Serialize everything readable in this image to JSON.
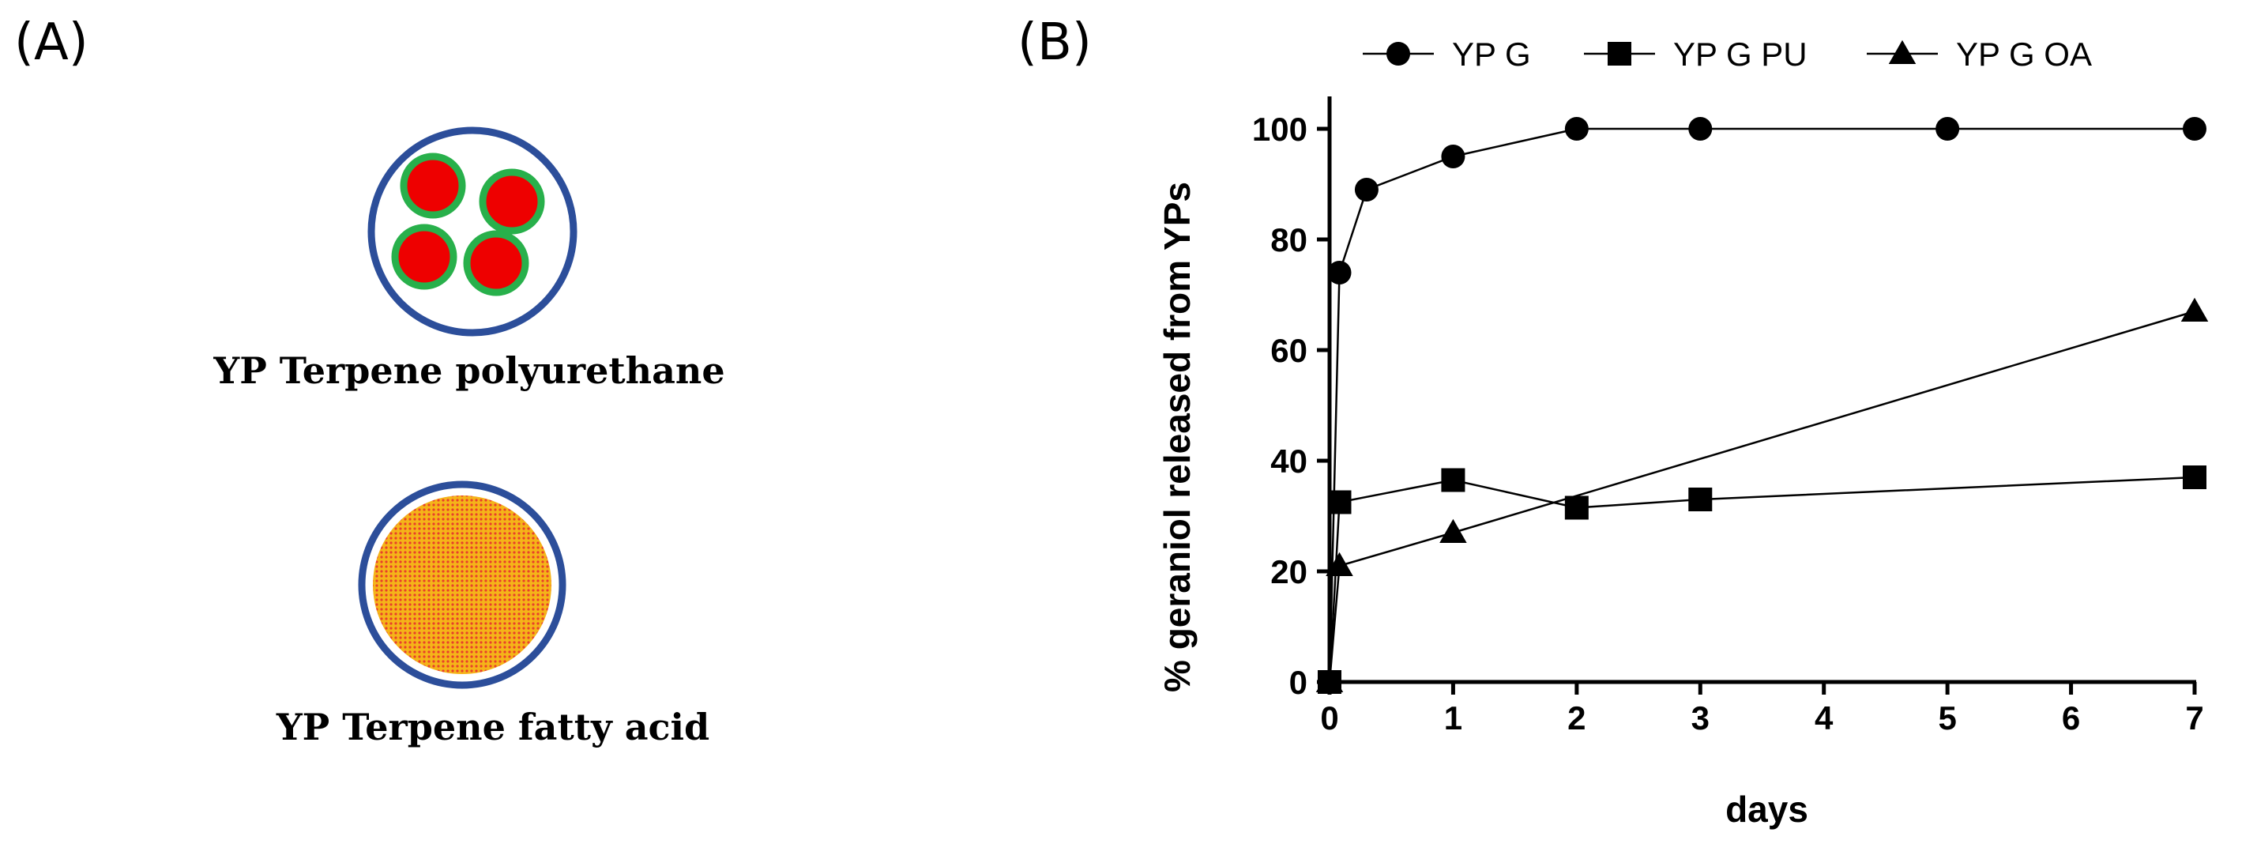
{
  "panels": {
    "a_label": "(A)",
    "b_label": "(B)"
  },
  "diagram": {
    "items": [
      {
        "caption": "YP Terpene polyurethane"
      },
      {
        "caption": "YP Terpene fatty acid"
      }
    ],
    "colors": {
      "shell": "#2c4e9a",
      "core_fill": "#ee0000",
      "core_ring": "#28b04b",
      "fatty_fill": "#f5b419",
      "fatty_dots": "#e8402a"
    }
  },
  "chart_data": {
    "type": "line",
    "title": "",
    "xlabel": "days",
    "ylabel": "% geraniol released from YPs",
    "xlim": [
      0,
      7
    ],
    "ylim": [
      0,
      100
    ],
    "xticks": [
      0,
      1,
      2,
      3,
      4,
      5,
      6,
      7
    ],
    "yticks": [
      0,
      20,
      40,
      60,
      80,
      100
    ],
    "legend_position": "top",
    "series": [
      {
        "name": "YP G",
        "marker": "circle",
        "x": [
          0,
          0.08,
          0.3,
          1,
          2,
          3,
          5,
          7
        ],
        "y": [
          0,
          74,
          89,
          95,
          100,
          100,
          100,
          100
        ]
      },
      {
        "name": "YP G PU",
        "marker": "square",
        "x": [
          0,
          0.08,
          1,
          2,
          3,
          7
        ],
        "y": [
          0,
          32.5,
          36.5,
          31.5,
          33,
          37
        ]
      },
      {
        "name": "YP G OA",
        "marker": "triangle",
        "x": [
          0,
          0.08,
          1,
          7
        ],
        "y": [
          0,
          21,
          27,
          67
        ]
      }
    ]
  }
}
